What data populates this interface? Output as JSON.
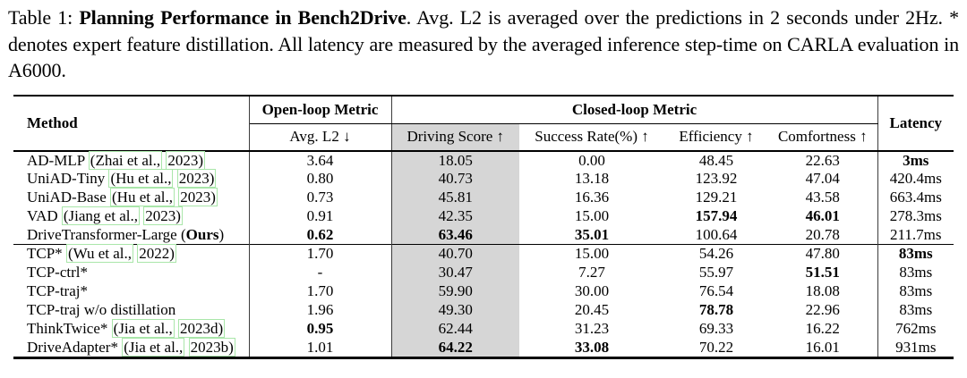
{
  "caption": {
    "prefix": "Table 1: ",
    "bold_title": "Planning Performance in Bench2Drive",
    "body": ". Avg. L2 is averaged over the predictions in 2 seconds under 2Hz. * denotes expert feature distillation. All latency are measured by the averaged inference step-time on CARLA evaluation in A6000."
  },
  "colors": {
    "highlight_column_bg": "#d6d6d6",
    "citation_box_border": "#a9e6a9",
    "rule_color": "#000000"
  },
  "table": {
    "header": {
      "method": "Method",
      "open_loop": "Open-loop Metric",
      "closed_loop": "Closed-loop Metric",
      "latency": "Latency",
      "subheaders": [
        "Avg. L2 ↓",
        "Driving Score ↑",
        "Success Rate(%) ↑",
        "Efficiency ↑",
        "Comfortness ↑"
      ]
    },
    "groups": [
      {
        "rows": [
          {
            "method": [
              {
                "t": "AD-MLP "
              },
              {
                "t": "(Zhai et al.,",
                "box": true
              },
              {
                "t": " "
              },
              {
                "t": "2023)",
                "box": true
              }
            ],
            "values": [
              {
                "t": "3.64"
              },
              {
                "t": "18.05"
              },
              {
                "t": "0.00"
              },
              {
                "t": "48.45"
              },
              {
                "t": "22.63"
              },
              {
                "t": "3ms",
                "b": true
              }
            ]
          },
          {
            "method": [
              {
                "t": "UniAD-Tiny "
              },
              {
                "t": "(Hu et al.,",
                "box": true
              },
              {
                "t": " "
              },
              {
                "t": "2023)",
                "box": true
              }
            ],
            "values": [
              {
                "t": "0.80"
              },
              {
                "t": "40.73"
              },
              {
                "t": "13.18"
              },
              {
                "t": "123.92"
              },
              {
                "t": "47.04"
              },
              {
                "t": "420.4ms"
              }
            ]
          },
          {
            "method": [
              {
                "t": "UniAD-Base "
              },
              {
                "t": "(Hu et al.,",
                "box": true
              },
              {
                "t": " "
              },
              {
                "t": "2023)",
                "box": true
              }
            ],
            "values": [
              {
                "t": "0.73"
              },
              {
                "t": "45.81"
              },
              {
                "t": "16.36"
              },
              {
                "t": "129.21"
              },
              {
                "t": "43.58"
              },
              {
                "t": "663.4ms"
              }
            ]
          },
          {
            "method": [
              {
                "t": "VAD "
              },
              {
                "t": "(Jiang et al.,",
                "box": true
              },
              {
                "t": " "
              },
              {
                "t": "2023)",
                "box": true
              }
            ],
            "values": [
              {
                "t": "0.91"
              },
              {
                "t": "42.35"
              },
              {
                "t": "15.00"
              },
              {
                "t": "157.94",
                "b": true
              },
              {
                "t": "46.01",
                "b": true
              },
              {
                "t": "278.3ms"
              }
            ]
          },
          {
            "method": [
              {
                "t": "DriveTransformer-Large ("
              },
              {
                "t": "Ours",
                "b": true
              },
              {
                "t": ")"
              }
            ],
            "values": [
              {
                "t": "0.62",
                "b": true
              },
              {
                "t": "63.46",
                "b": true
              },
              {
                "t": "35.01",
                "b": true
              },
              {
                "t": "100.64"
              },
              {
                "t": "20.78"
              },
              {
                "t": "211.7ms"
              }
            ]
          }
        ]
      },
      {
        "rows": [
          {
            "method": [
              {
                "t": "TCP* "
              },
              {
                "t": "(Wu et al.,",
                "box": true
              },
              {
                "t": " "
              },
              {
                "t": "2022)",
                "box": true
              }
            ],
            "values": [
              {
                "t": "1.70"
              },
              {
                "t": "40.70"
              },
              {
                "t": "15.00"
              },
              {
                "t": "54.26"
              },
              {
                "t": "47.80"
              },
              {
                "t": "83ms",
                "b": true
              }
            ]
          },
          {
            "method": [
              {
                "t": "TCP-ctrl*"
              }
            ],
            "values": [
              {
                "t": "-"
              },
              {
                "t": "30.47"
              },
              {
                "t": "7.27"
              },
              {
                "t": "55.97"
              },
              {
                "t": "51.51",
                "b": true
              },
              {
                "t": "83ms"
              }
            ]
          },
          {
            "method": [
              {
                "t": "TCP-traj*"
              }
            ],
            "values": [
              {
                "t": "1.70"
              },
              {
                "t": "59.90"
              },
              {
                "t": "30.00"
              },
              {
                "t": "76.54"
              },
              {
                "t": "18.08"
              },
              {
                "t": "83ms"
              }
            ]
          },
          {
            "method": [
              {
                "t": "TCP-traj w/o distillation"
              }
            ],
            "values": [
              {
                "t": "1.96"
              },
              {
                "t": "49.30"
              },
              {
                "t": "20.45"
              },
              {
                "t": "78.78",
                "b": true
              },
              {
                "t": "22.96"
              },
              {
                "t": "83ms"
              }
            ]
          },
          {
            "method": [
              {
                "t": "ThinkTwice* "
              },
              {
                "t": "(Jia et al.,",
                "box": true
              },
              {
                "t": " "
              },
              {
                "t": "2023d)",
                "box": true
              }
            ],
            "values": [
              {
                "t": "0.95",
                "b": true
              },
              {
                "t": "62.44"
              },
              {
                "t": "31.23"
              },
              {
                "t": "69.33"
              },
              {
                "t": "16.22"
              },
              {
                "t": "762ms"
              }
            ]
          },
          {
            "method": [
              {
                "t": "DriveAdapter* "
              },
              {
                "t": "(Jia et al.,",
                "box": true
              },
              {
                "t": " "
              },
              {
                "t": "2023b)",
                "box": true
              }
            ],
            "values": [
              {
                "t": "1.01"
              },
              {
                "t": "64.22",
                "b": true
              },
              {
                "t": "33.08",
                "b": true
              },
              {
                "t": "70.22"
              },
              {
                "t": "16.01"
              },
              {
                "t": "931ms"
              }
            ]
          }
        ]
      }
    ]
  }
}
